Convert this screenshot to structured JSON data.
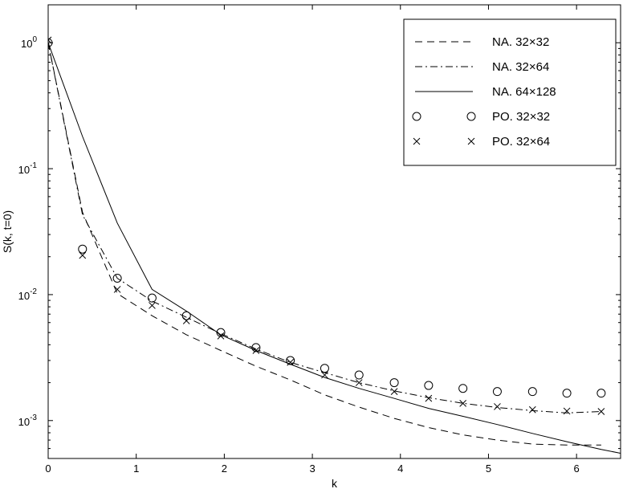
{
  "chart_data": {
    "type": "line",
    "title": "",
    "xlabel": "k",
    "ylabel": "S(k, t=0)",
    "xlim": [
      0,
      6.5
    ],
    "ylim": [
      0.0005,
      2
    ],
    "yscale": "log",
    "grid": false,
    "legend_position": "top-right",
    "x_ticks": [
      0,
      1,
      2,
      3,
      4,
      5,
      6
    ],
    "x_tick_labels": [
      "0",
      "1",
      "2",
      "3",
      "4",
      "5",
      "6"
    ],
    "y_ticks": [
      0.001,
      0.01,
      0.1,
      1
    ],
    "y_tick_labels": [
      {
        "base": "10",
        "exp": "-3"
      },
      {
        "base": "10",
        "exp": "-2"
      },
      {
        "base": "10",
        "exp": "-1"
      },
      {
        "base": "10",
        "exp": "0"
      }
    ],
    "series": [
      {
        "name": "NA. 32×32",
        "style": "dashed",
        "marker": "",
        "x": [
          0,
          0.39,
          0.785,
          1.18,
          1.57,
          1.96,
          2.36,
          2.75,
          3.14,
          3.53,
          3.93,
          4.32,
          4.71,
          5.1,
          5.5,
          5.89,
          6.28
        ],
        "y": [
          1.0,
          0.045,
          0.0102,
          0.0068,
          0.0048,
          0.0036,
          0.0027,
          0.0021,
          0.0016,
          0.00128,
          0.00104,
          0.00088,
          0.00077,
          0.0007,
          0.00065,
          0.00064,
          0.00064
        ]
      },
      {
        "name": "NA. 32×64",
        "style": "dashdot",
        "marker": "",
        "x": [
          0,
          0.39,
          0.785,
          1.18,
          1.57,
          1.96,
          2.36,
          2.75,
          3.14,
          3.53,
          3.93,
          4.32,
          4.71,
          5.1,
          5.5,
          5.89,
          6.28
        ],
        "y": [
          1.0,
          0.043,
          0.0135,
          0.0089,
          0.0066,
          0.0049,
          0.0037,
          0.0029,
          0.0024,
          0.002,
          0.00172,
          0.00152,
          0.00137,
          0.00127,
          0.0012,
          0.00115,
          0.00118
        ]
      },
      {
        "name": "NA. 64×128",
        "style": "solid",
        "marker": "",
        "x": [
          0,
          0.39,
          0.785,
          1.18,
          1.57,
          1.96,
          2.36,
          2.75,
          3.14,
          3.53,
          3.93,
          4.32,
          4.71,
          5.1,
          5.5,
          5.89,
          6.28,
          6.5
        ],
        "y": [
          1.0,
          0.18,
          0.037,
          0.011,
          0.0074,
          0.0048,
          0.0036,
          0.0028,
          0.0022,
          0.0018,
          0.0015,
          0.00125,
          0.00108,
          0.00093,
          0.00079,
          0.00068,
          0.00059,
          0.00055
        ]
      },
      {
        "name": "PO. 32×32",
        "style": "none",
        "marker": "circle",
        "x": [
          0,
          0.39,
          0.785,
          1.18,
          1.57,
          1.96,
          2.36,
          2.75,
          3.14,
          3.53,
          3.93,
          4.32,
          4.71,
          5.1,
          5.5,
          5.89,
          6.28
        ],
        "y": [
          1.0,
          0.023,
          0.0135,
          0.0094,
          0.0068,
          0.005,
          0.0038,
          0.003,
          0.0026,
          0.0023,
          0.002,
          0.0019,
          0.0018,
          0.0017,
          0.0017,
          0.00165,
          0.00165
        ]
      },
      {
        "name": "PO. 32×64",
        "style": "none",
        "marker": "x",
        "x": [
          0,
          0.39,
          0.785,
          1.18,
          1.57,
          1.96,
          2.36,
          2.75,
          3.14,
          3.53,
          3.93,
          4.32,
          4.71,
          5.1,
          5.5,
          5.89,
          6.28
        ],
        "y": [
          1.05,
          0.0205,
          0.011,
          0.0082,
          0.0062,
          0.0047,
          0.0036,
          0.0029,
          0.0023,
          0.002,
          0.0017,
          0.0015,
          0.00137,
          0.00129,
          0.00122,
          0.00119,
          0.00118
        ]
      }
    ]
  }
}
